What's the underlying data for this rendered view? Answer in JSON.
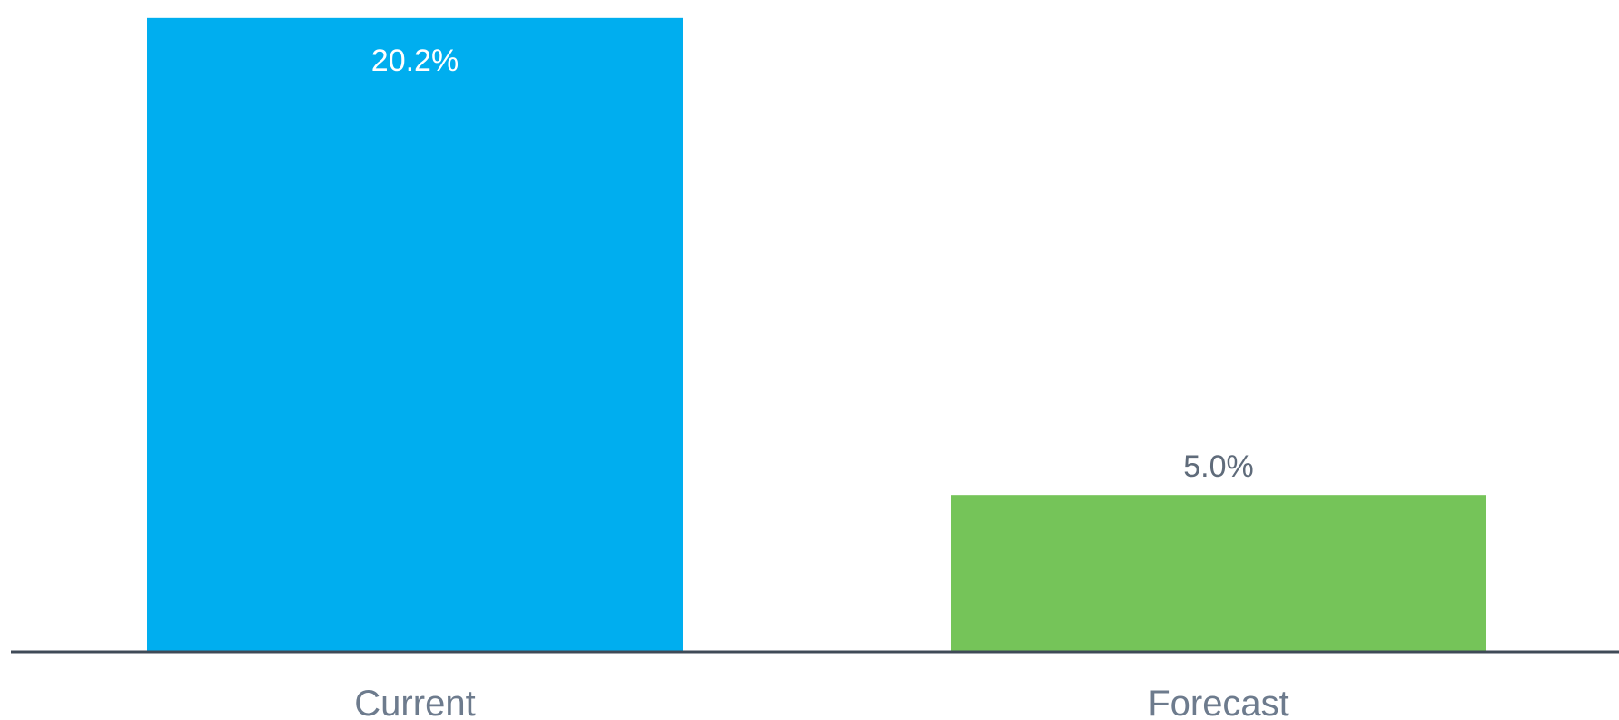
{
  "chart_data": {
    "type": "bar",
    "categories": [
      "Current",
      "Forecast"
    ],
    "values": [
      20.2,
      5.0
    ],
    "value_labels": [
      "20.2%",
      "5.0%"
    ],
    "unit": "%",
    "ylim": [
      0,
      20.6
    ],
    "grid": false,
    "title": "",
    "xlabel": "",
    "ylabel": "",
    "colors": {
      "bars": [
        "#00aeef",
        "#75c459"
      ],
      "baseline": "#3f4a57",
      "value_label_inside": "#ffffff",
      "value_label_outside": "#5f6b7a",
      "category_label": "#6d7b8d"
    }
  }
}
